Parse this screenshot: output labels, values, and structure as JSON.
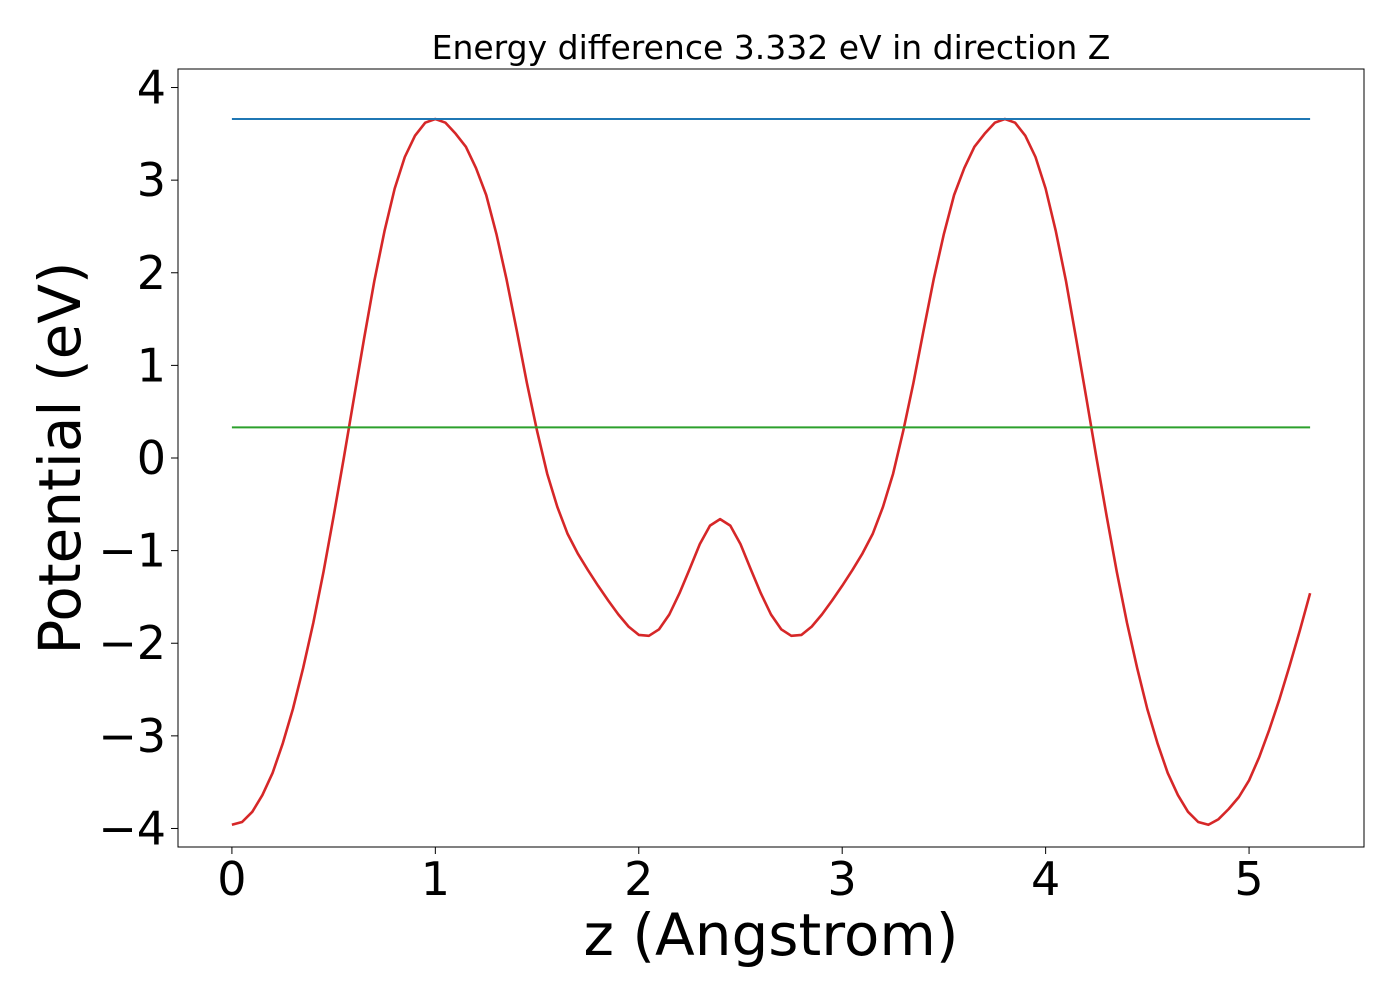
{
  "chart_data": {
    "type": "line",
    "title": "Energy difference 3.332 eV in direction Z",
    "xlabel": "z (Angstrom)",
    "ylabel": "Potential (eV)",
    "xlim": [
      -0.265,
      5.565
    ],
    "ylim": [
      -4.2,
      4.2
    ],
    "xticks": [
      0,
      1,
      2,
      3,
      4,
      5
    ],
    "xtick_labels": [
      "0",
      "1",
      "2",
      "3",
      "4",
      "5"
    ],
    "yticks": [
      -4,
      -3,
      -2,
      -1,
      0,
      1,
      2,
      3,
      4
    ],
    "ytick_labels": [
      "−4",
      "−3",
      "−2",
      "−1",
      "0",
      "1",
      "2",
      "3",
      "4"
    ],
    "grid": false,
    "legend": "none",
    "series": [
      {
        "color": "#d62728",
        "x": [
          0,
          0.05,
          0.1,
          0.15,
          0.2,
          0.25,
          0.3,
          0.35,
          0.4,
          0.45,
          0.5,
          0.55,
          0.6,
          0.65,
          0.7,
          0.75,
          0.8,
          0.85,
          0.9,
          0.95,
          1.0,
          1.05,
          1.1,
          1.15,
          1.2,
          1.25,
          1.3,
          1.35,
          1.4,
          1.45,
          1.5,
          1.55,
          1.6,
          1.65,
          1.7,
          1.75,
          1.8,
          1.85,
          1.9,
          1.95,
          2.0,
          2.05,
          2.1,
          2.15,
          2.2,
          2.25,
          2.3,
          2.35,
          2.4,
          2.45,
          2.5,
          2.55,
          2.6,
          2.65,
          2.7,
          2.75,
          2.8,
          2.85,
          2.9,
          2.95,
          3.0,
          3.05,
          3.1,
          3.15,
          3.2,
          3.25,
          3.3,
          3.35,
          3.4,
          3.45,
          3.5,
          3.55,
          3.6,
          3.65,
          3.7,
          3.75,
          3.8,
          3.85,
          3.9,
          3.95,
          4.0,
          4.05,
          4.1,
          4.15,
          4.2,
          4.25,
          4.3,
          4.35,
          4.4,
          4.45,
          4.5,
          4.55,
          4.6,
          4.65,
          4.7,
          4.75,
          4.8,
          4.85,
          4.9,
          4.95,
          5.0,
          5.05,
          5.1,
          5.15,
          5.2,
          5.25,
          5.3
        ],
        "y": [
          -3.96,
          -3.93,
          -3.82,
          -3.64,
          -3.4,
          -3.08,
          -2.71,
          -2.27,
          -1.78,
          -1.23,
          -0.63,
          0.0,
          0.65,
          1.29,
          1.91,
          2.45,
          2.91,
          3.25,
          3.48,
          3.62,
          3.66,
          3.62,
          3.5,
          3.36,
          3.13,
          2.84,
          2.42,
          1.93,
          1.38,
          0.81,
          0.29,
          -0.17,
          -0.53,
          -0.82,
          -1.03,
          -1.21,
          -1.38,
          -1.54,
          -1.69,
          -1.82,
          -1.91,
          -1.92,
          -1.85,
          -1.69,
          -1.46,
          -1.2,
          -0.93,
          -0.73,
          -0.66,
          -0.73,
          -0.93,
          -1.2,
          -1.46,
          -1.69,
          -1.85,
          -1.92,
          -1.91,
          -1.82,
          -1.69,
          -1.54,
          -1.38,
          -1.21,
          -1.03,
          -0.82,
          -0.53,
          -0.17,
          0.29,
          0.81,
          1.38,
          1.93,
          2.42,
          2.84,
          3.13,
          3.36,
          3.5,
          3.62,
          3.66,
          3.62,
          3.48,
          3.25,
          2.91,
          2.45,
          1.91,
          1.29,
          0.65,
          0.0,
          -0.63,
          -1.23,
          -1.78,
          -2.27,
          -2.71,
          -3.08,
          -3.4,
          -3.64,
          -3.82,
          -3.93,
          -3.96,
          -3.9,
          -3.79,
          -3.66,
          -3.48,
          -3.23,
          -2.93,
          -2.6,
          -2.24,
          -1.86,
          -1.46
        ]
      },
      {
        "color": "#1f77b4",
        "x": [
          0,
          5.3
        ],
        "y": [
          3.66,
          3.66
        ]
      },
      {
        "color": "#2ca02c",
        "x": [
          0,
          5.3
        ],
        "y": [
          0.33,
          0.33
        ]
      }
    ]
  }
}
